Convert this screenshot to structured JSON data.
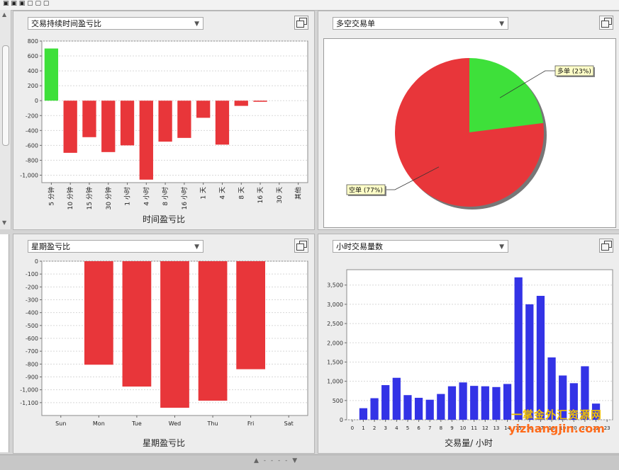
{
  "toolbar_partial": "▣  ▣  ▣   ▢ ▢ ▢",
  "panels": {
    "duration": {
      "dropdown": "交易持续时间盈亏比",
      "footer": "时间盈亏比",
      "chart_data": {
        "type": "bar",
        "categories": [
          "5 分钟",
          "10 分钟",
          "15 分钟",
          "30 分钟",
          "1 小时",
          "4 小时",
          "8 小时",
          "16 小时",
          "1 天",
          "4 天",
          "8 天",
          "16 天",
          "30 天",
          "其他"
        ],
        "values": [
          700,
          -700,
          -490,
          -690,
          -600,
          -1060,
          -550,
          -500,
          -230,
          -590,
          -70,
          -15,
          0,
          0
        ],
        "ylim": [
          -1100,
          800
        ],
        "yticks": [
          800,
          600,
          400,
          200,
          0,
          -200,
          -400,
          -600,
          -800,
          -1000
        ],
        "ytick_labels": [
          "800",
          "600",
          "400",
          "200",
          "0",
          "-200",
          "-400",
          "-600",
          "-800",
          "-1,000"
        ],
        "positive_color": "#3ee03a",
        "negative_color": "#e8363a",
        "grid": true
      }
    },
    "longshort": {
      "dropdown": "多空交易单",
      "chart_data": {
        "type": "pie",
        "slices": [
          {
            "label": "多单 (23%)",
            "value": 23,
            "color": "#3ee03a"
          },
          {
            "label": "空单 (77%)",
            "value": 77,
            "color": "#e8363a"
          }
        ]
      }
    },
    "weekday": {
      "dropdown": "星期盈亏比",
      "footer": "星期盈亏比",
      "chart_data": {
        "type": "bar",
        "categories": [
          "Sun",
          "Mon",
          "Tue",
          "Wed",
          "Thu",
          "Fri",
          "Sat"
        ],
        "values": [
          0,
          -805,
          -975,
          -1140,
          -1085,
          -840,
          0
        ],
        "ylim": [
          -1200,
          0
        ],
        "yticks": [
          0,
          -100,
          -200,
          -300,
          -400,
          -500,
          -600,
          -700,
          -800,
          -900,
          -1000,
          -1100
        ],
        "ytick_labels": [
          "0",
          "-100",
          "-200",
          "-300",
          "-400",
          "-500",
          "-600",
          "-700",
          "-800",
          "-900",
          "-1,000",
          "-1,100"
        ],
        "negative_color": "#e8363a",
        "grid": true
      }
    },
    "hourly": {
      "dropdown": "小时交易量数",
      "footer": "交易量/ 小时",
      "chart_data": {
        "type": "bar",
        "categories": [
          "0",
          "1",
          "2",
          "3",
          "4",
          "5",
          "6",
          "7",
          "8",
          "9",
          "10",
          "11",
          "12",
          "13",
          "14",
          "15",
          "16",
          "17",
          "18",
          "19",
          "20",
          "21",
          "22",
          "23"
        ],
        "values": [
          0,
          300,
          560,
          900,
          1090,
          640,
          570,
          520,
          670,
          870,
          970,
          880,
          870,
          850,
          930,
          3700,
          3000,
          3220,
          1620,
          1150,
          950,
          1390,
          420,
          0
        ],
        "ylim": [
          0,
          3900
        ],
        "yticks": [
          0,
          500,
          1000,
          1500,
          2000,
          2500,
          3000,
          3500
        ],
        "ytick_labels": [
          "0",
          "500",
          "1,000",
          "1,500",
          "2,000",
          "2,500",
          "3,000",
          "3,500"
        ],
        "bar_color": "#3333e6",
        "grid": true
      }
    }
  },
  "watermark": {
    "line1": "一掌金外汇资源网",
    "line2": "yizhangjin.com"
  }
}
